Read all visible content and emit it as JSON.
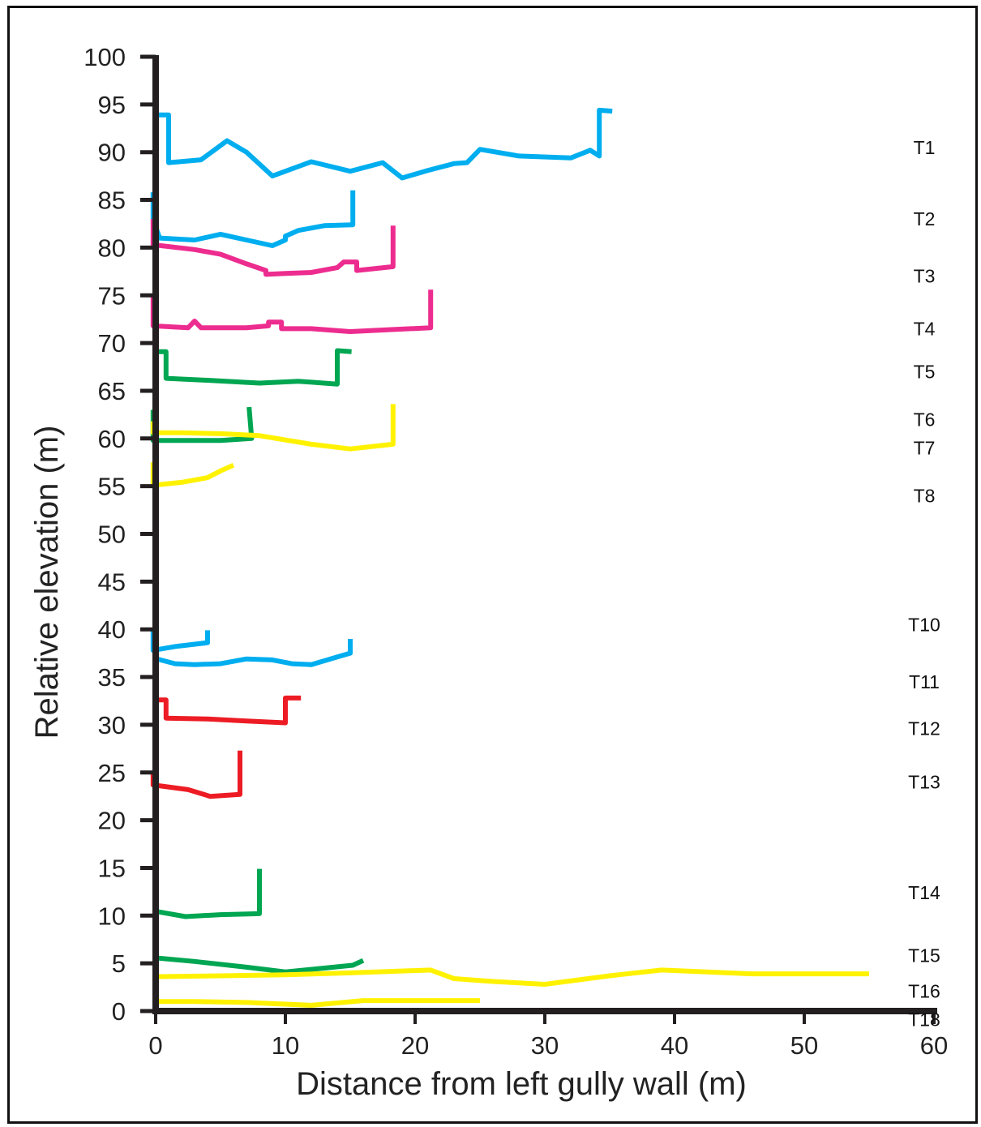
{
  "chart_data": {
    "type": "line",
    "xlabel": "Distance from left gully wall (m)",
    "ylabel": "Relative elevation (m)",
    "xlim": [
      0,
      60
    ],
    "ylim": [
      0,
      100
    ],
    "x_ticks": [
      0,
      10,
      20,
      30,
      40,
      50,
      60
    ],
    "y_ticks": [
      0,
      5,
      10,
      15,
      20,
      25,
      30,
      35,
      40,
      45,
      50,
      55,
      60,
      65,
      70,
      75,
      80,
      85,
      90,
      95,
      100
    ],
    "grid": false,
    "legend": "none",
    "series": [
      {
        "name": "T1",
        "color": "#00aeef",
        "label_y": 90.5,
        "points": [
          [
            -0.2,
            93.9
          ],
          [
            1.0,
            93.9
          ],
          [
            1.0,
            88.9
          ],
          [
            3.5,
            89.2
          ],
          [
            5.5,
            91.2
          ],
          [
            7.0,
            90.0
          ],
          [
            9.0,
            87.5
          ],
          [
            12.0,
            89.0
          ],
          [
            15.0,
            88.0
          ],
          [
            17.5,
            88.9
          ],
          [
            19.0,
            87.3
          ],
          [
            21.0,
            88.1
          ],
          [
            23.0,
            88.8
          ],
          [
            24.0,
            88.9
          ],
          [
            25.0,
            90.3
          ],
          [
            28.0,
            89.6
          ],
          [
            32.0,
            89.4
          ],
          [
            33.5,
            90.2
          ],
          [
            34.2,
            89.6
          ],
          [
            34.2,
            94.4
          ],
          [
            35.2,
            94.3
          ]
        ]
      },
      {
        "name": "T2",
        "color": "#00aeef",
        "label_y": 83.0,
        "points": [
          [
            -0.2,
            85.8
          ],
          [
            -0.2,
            83.0
          ],
          [
            0.3,
            81.0
          ],
          [
            3.0,
            80.8
          ],
          [
            5.0,
            81.4
          ],
          [
            7.0,
            80.8
          ],
          [
            9.0,
            80.2
          ],
          [
            10.0,
            80.8
          ],
          [
            10.0,
            81.2
          ],
          [
            11.0,
            81.8
          ],
          [
            13.0,
            82.3
          ],
          [
            15.2,
            82.4
          ],
          [
            15.2,
            86.0
          ]
        ]
      },
      {
        "name": "T3",
        "color": "#ed2c8f",
        "label_y": 77.0,
        "points": [
          [
            -0.2,
            83.0
          ],
          [
            -0.2,
            80.3
          ],
          [
            3.0,
            79.8
          ],
          [
            5.0,
            79.3
          ],
          [
            7.0,
            78.3
          ],
          [
            8.5,
            77.6
          ],
          [
            8.5,
            77.2
          ],
          [
            10.0,
            77.3
          ],
          [
            12.0,
            77.4
          ],
          [
            14.0,
            77.9
          ],
          [
            14.5,
            78.5
          ],
          [
            15.0,
            78.5
          ],
          [
            15.5,
            78.5
          ],
          [
            15.5,
            77.6
          ],
          [
            18.3,
            78.0
          ],
          [
            18.3,
            82.3
          ]
        ]
      },
      {
        "name": "T4",
        "color": "#ed2c8f",
        "label_y": 71.5,
        "points": [
          [
            -0.2,
            75.1
          ],
          [
            -0.2,
            71.8
          ],
          [
            2.5,
            71.6
          ],
          [
            3.0,
            72.3
          ],
          [
            3.5,
            71.6
          ],
          [
            5.0,
            71.6
          ],
          [
            7.0,
            71.6
          ],
          [
            8.7,
            71.8
          ],
          [
            8.7,
            72.2
          ],
          [
            9.7,
            72.2
          ],
          [
            9.7,
            71.5
          ],
          [
            12.0,
            71.5
          ],
          [
            15.0,
            71.2
          ],
          [
            18.0,
            71.4
          ],
          [
            21.2,
            71.6
          ],
          [
            21.2,
            75.6
          ]
        ]
      },
      {
        "name": "T5",
        "color": "#00a651",
        "label_y": 67.0,
        "points": [
          [
            -0.2,
            69.1
          ],
          [
            0.8,
            69.1
          ],
          [
            0.8,
            66.3
          ],
          [
            4.0,
            66.1
          ],
          [
            8.0,
            65.8
          ],
          [
            11.0,
            66.0
          ],
          [
            14.0,
            65.7
          ],
          [
            14.0,
            69.2
          ],
          [
            15.1,
            69.1
          ]
        ]
      },
      {
        "name": "T6",
        "color": "#00a651",
        "label_y": 62.0,
        "points": [
          [
            -0.2,
            63.0
          ],
          [
            -0.2,
            59.8
          ],
          [
            3.0,
            59.8
          ],
          [
            5.0,
            59.8
          ],
          [
            7.4,
            60.0
          ],
          [
            7.2,
            63.3
          ]
        ]
      },
      {
        "name": "T7",
        "color": "#fff200",
        "label_y": 59.0,
        "points": [
          [
            -0.2,
            61.8
          ],
          [
            -0.2,
            60.6
          ],
          [
            2.0,
            60.6
          ],
          [
            5.0,
            60.5
          ],
          [
            8.0,
            60.3
          ],
          [
            12.0,
            59.4
          ],
          [
            15.0,
            58.9
          ],
          [
            18.3,
            59.4
          ],
          [
            18.3,
            63.6
          ]
        ]
      },
      {
        "name": "T8",
        "color": "#fff200",
        "label_y": 54.0,
        "points": [
          [
            -0.2,
            57.5
          ],
          [
            -0.2,
            55.1
          ],
          [
            2.0,
            55.4
          ],
          [
            4.0,
            55.9
          ],
          [
            5.0,
            56.6
          ],
          [
            6.0,
            57.2
          ]
        ]
      },
      {
        "name": "T10",
        "color": "#00aeef",
        "label_y": 40.5,
        "points": [
          [
            -0.2,
            40.0
          ],
          [
            -0.2,
            37.8
          ],
          [
            1.5,
            38.2
          ],
          [
            4.0,
            38.6
          ],
          [
            4.0,
            39.9
          ]
        ]
      },
      {
        "name": "T11",
        "color": "#00aeef",
        "label_y": 34.5,
        "points": [
          [
            -0.2,
            37.0
          ],
          [
            1.5,
            36.4
          ],
          [
            3.0,
            36.3
          ],
          [
            5.0,
            36.4
          ],
          [
            7.0,
            36.9
          ],
          [
            9.0,
            36.8
          ],
          [
            10.5,
            36.4
          ],
          [
            12.0,
            36.3
          ],
          [
            14.0,
            37.1
          ],
          [
            15.0,
            37.5
          ],
          [
            15.0,
            39.0
          ]
        ]
      },
      {
        "name": "T12",
        "color": "#ed1c24",
        "label_y": 29.6,
        "points": [
          [
            -0.2,
            32.6
          ],
          [
            0.8,
            32.6
          ],
          [
            0.8,
            30.7
          ],
          [
            4.0,
            30.6
          ],
          [
            7.0,
            30.4
          ],
          [
            10.0,
            30.2
          ],
          [
            10.0,
            32.8
          ],
          [
            11.2,
            32.8
          ]
        ]
      },
      {
        "name": "T13",
        "color": "#ed1c24",
        "label_y": 24.0,
        "points": [
          [
            -0.2,
            25.1
          ],
          [
            -0.2,
            23.7
          ],
          [
            2.5,
            23.2
          ],
          [
            4.2,
            22.5
          ],
          [
            6.5,
            22.7
          ],
          [
            6.5,
            27.3
          ]
        ]
      },
      {
        "name": "T14",
        "color": "#00a651",
        "label_y": 12.4,
        "points": [
          [
            -0.2,
            10.5
          ],
          [
            2.3,
            9.9
          ],
          [
            5.0,
            10.1
          ],
          [
            8.0,
            10.2
          ],
          [
            8.0,
            14.9
          ]
        ]
      },
      {
        "name": "T15",
        "color": "#00a651",
        "label_y": 5.8,
        "points": [
          [
            -0.2,
            5.6
          ],
          [
            3.0,
            5.2
          ],
          [
            7.0,
            4.6
          ],
          [
            10.0,
            4.1
          ],
          [
            13.0,
            4.5
          ],
          [
            15.2,
            4.8
          ],
          [
            16.0,
            5.3
          ]
        ]
      },
      {
        "name": "T16",
        "color": "#fff200",
        "label_y": 2.1,
        "points": [
          [
            -0.2,
            3.6
          ],
          [
            5.0,
            3.7
          ],
          [
            10.0,
            3.8
          ],
          [
            15.0,
            4.0
          ],
          [
            21.2,
            4.3
          ],
          [
            23.0,
            3.4
          ],
          [
            26.0,
            3.1
          ],
          [
            30.0,
            2.8
          ],
          [
            35.0,
            3.7
          ],
          [
            39.0,
            4.3
          ],
          [
            46.0,
            3.9
          ],
          [
            55.0,
            3.9
          ]
        ]
      },
      {
        "name": "T18",
        "color": "#fff200",
        "label_y": -0.9,
        "points": [
          [
            -0.2,
            1.0
          ],
          [
            3.0,
            1.0
          ],
          [
            7.0,
            0.9
          ],
          [
            12.0,
            0.6
          ],
          [
            16.0,
            1.1
          ],
          [
            20.0,
            1.1
          ],
          [
            25.0,
            1.1
          ]
        ]
      }
    ]
  }
}
